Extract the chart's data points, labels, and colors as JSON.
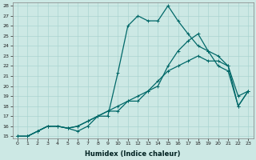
{
  "xlabel": "Humidex (Indice chaleur)",
  "ylabel": "",
  "bg_color": "#cce8e4",
  "line_color": "#006868",
  "xlim": [
    -0.5,
    23.5
  ],
  "ylim": [
    14.8,
    28.3
  ],
  "yticks": [
    15,
    16,
    17,
    18,
    19,
    20,
    21,
    22,
    23,
    24,
    25,
    26,
    27,
    28
  ],
  "xticks": [
    0,
    1,
    2,
    3,
    4,
    5,
    6,
    7,
    8,
    9,
    10,
    11,
    12,
    13,
    14,
    15,
    16,
    17,
    18,
    19,
    20,
    21,
    22,
    23
  ],
  "line1_x": [
    0,
    1,
    2,
    3,
    4,
    5,
    6,
    7,
    8,
    9,
    10,
    11,
    12,
    13,
    14,
    15,
    16,
    17,
    18,
    19,
    20,
    21,
    22,
    23
  ],
  "line1_y": [
    15,
    15,
    15.5,
    16,
    16,
    15.8,
    16,
    16.5,
    17,
    17.5,
    18,
    18.5,
    19,
    19.5,
    20.5,
    21.5,
    22,
    22.5,
    23,
    22.5,
    22.5,
    22,
    19,
    19.5
  ],
  "line2_x": [
    0,
    1,
    2,
    3,
    4,
    5,
    6,
    7,
    8,
    9,
    10,
    11,
    12,
    13,
    14,
    15,
    16,
    17,
    18,
    19,
    20,
    21,
    22,
    23
  ],
  "line2_y": [
    15,
    15,
    15.5,
    16,
    16,
    15.8,
    15.5,
    16,
    17,
    17,
    21.3,
    26,
    27,
    26.5,
    26.5,
    28,
    26.5,
    25.2,
    24,
    23.5,
    22,
    21.5,
    18,
    19.5
  ],
  "line3_x": [
    0,
    1,
    2,
    3,
    4,
    5,
    6,
    7,
    8,
    9,
    10,
    11,
    12,
    13,
    14,
    15,
    16,
    17,
    18,
    19,
    20,
    21,
    22,
    23
  ],
  "line3_y": [
    15,
    15,
    15.5,
    16,
    16,
    15.8,
    16,
    16.5,
    17,
    17.5,
    17.5,
    18.5,
    18.5,
    19.5,
    20,
    22,
    23.5,
    24.5,
    25.2,
    23.5,
    23,
    22,
    18,
    19.5
  ],
  "grid_color": "#aad4d0",
  "grid_linewidth": 0.5,
  "line_linewidth": 0.9,
  "marker": "+",
  "markersize": 3,
  "tick_fontsize": 4.5,
  "xlabel_fontsize": 6
}
